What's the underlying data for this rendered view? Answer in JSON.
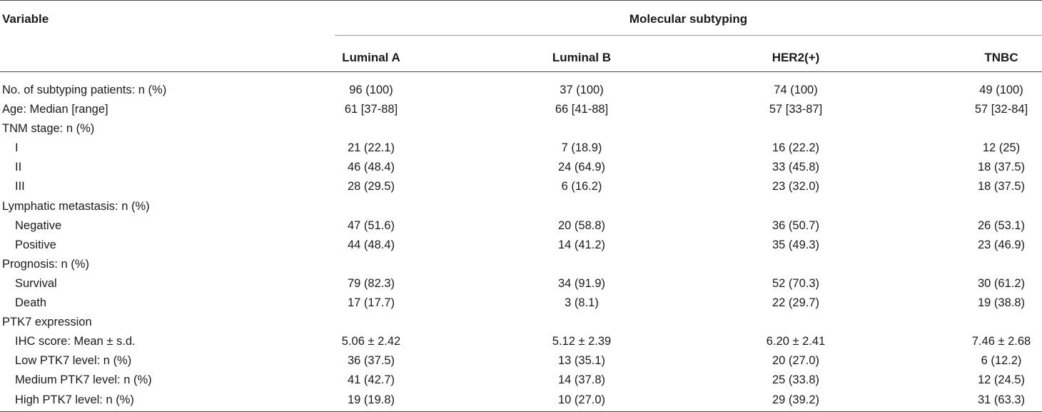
{
  "header": {
    "variable_label": "Variable",
    "group_label": "Molecular subtyping",
    "columns": [
      "Luminal A",
      "Luminal B",
      "HER2(+)",
      "TNBC"
    ]
  },
  "rows": [
    {
      "label": "No. of subtyping patients: n (%)",
      "indent": false,
      "values": [
        "96 (100)",
        "37 (100)",
        "74 (100)",
        "49 (100)"
      ]
    },
    {
      "label": "Age: Median [range]",
      "indent": false,
      "values": [
        "61 [37-88]",
        "66 [41-88]",
        "57 [33-87]",
        "57 [32-84]"
      ]
    },
    {
      "label": "TNM stage: n (%)",
      "indent": false,
      "values": [
        "",
        "",
        "",
        ""
      ]
    },
    {
      "label": "I",
      "indent": true,
      "values": [
        "21 (22.1)",
        "7 (18.9)",
        "16 (22.2)",
        "12 (25)"
      ]
    },
    {
      "label": "II",
      "indent": true,
      "values": [
        "46 (48.4)",
        "24 (64.9)",
        "33 (45.8)",
        "18 (37.5)"
      ]
    },
    {
      "label": "III",
      "indent": true,
      "values": [
        "28 (29.5)",
        "6 (16.2)",
        "23 (32.0)",
        "18 (37.5)"
      ]
    },
    {
      "label": "Lymphatic metastasis: n (%)",
      "indent": false,
      "values": [
        "",
        "",
        "",
        ""
      ]
    },
    {
      "label": "Negative",
      "indent": true,
      "values": [
        "47 (51.6)",
        "20 (58.8)",
        "36 (50.7)",
        "26 (53.1)"
      ]
    },
    {
      "label": "Positive",
      "indent": true,
      "values": [
        "44 (48.4)",
        "14 (41.2)",
        "35 (49.3)",
        "23 (46.9)"
      ]
    },
    {
      "label": "Prognosis: n (%)",
      "indent": false,
      "values": [
        "",
        "",
        "",
        ""
      ]
    },
    {
      "label": "Survival",
      "indent": true,
      "values": [
        "79 (82.3)",
        "34 (91.9)",
        "52 (70.3)",
        "30 (61.2)"
      ]
    },
    {
      "label": "Death",
      "indent": true,
      "values": [
        "17 (17.7)",
        "3 (8.1)",
        "22 (29.7)",
        "19 (38.8)"
      ]
    },
    {
      "label": "PTK7 expression",
      "indent": false,
      "values": [
        "",
        "",
        "",
        ""
      ]
    },
    {
      "label": "IHC score: Mean ± s.d.",
      "indent": true,
      "values": [
        "5.06 ± 2.42",
        "5.12 ± 2.39",
        "6.20 ± 2.41",
        "7.46 ± 2.68"
      ]
    },
    {
      "label": "Low PTK7 level: n (%)",
      "indent": true,
      "values": [
        "36 (37.5)",
        "13 (35.1)",
        "20 (27.0)",
        "6 (12.2)"
      ]
    },
    {
      "label": "Medium PTK7 level: n (%)",
      "indent": true,
      "values": [
        "41 (42.7)",
        "14 (37.8)",
        "25 (33.8)",
        "12 (24.5)"
      ]
    },
    {
      "label": "High PTK7 level: n (%)",
      "indent": true,
      "values": [
        "19 (19.8)",
        "10 (27.0)",
        "29 (39.2)",
        "31 (63.3)"
      ]
    }
  ]
}
